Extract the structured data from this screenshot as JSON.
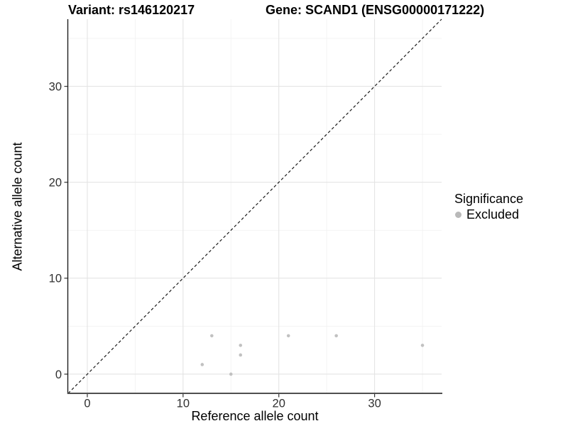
{
  "chart_data": {
    "type": "scatter",
    "titles": {
      "left": "Variant: rs146120217",
      "right": "Gene: SCAND1 (ENSG00000171222)"
    },
    "xlabel": "Reference allele count",
    "ylabel": "Alternative allele count",
    "axis": {
      "xlim": [
        -2,
        37
      ],
      "ylim": [
        -2,
        37
      ],
      "x_major_ticks": [
        0,
        10,
        20,
        30
      ],
      "y_major_ticks": [
        0,
        10,
        20,
        30
      ],
      "x_minor_gridlines": [
        5,
        15,
        25,
        35
      ],
      "y_minor_gridlines": [
        5,
        15,
        25,
        35
      ],
      "grid": "major and minor gridlines on white panel"
    },
    "reference_line": {
      "equation": "y = x",
      "style": "dashed",
      "from": [
        -2,
        -2
      ],
      "to": [
        37,
        37
      ],
      "color": "#1a1a1a"
    },
    "series": [
      {
        "name": "Excluded",
        "marker": "circle",
        "color": "#c1c1c1",
        "points": [
          [
            12,
            1
          ],
          [
            13,
            4
          ],
          [
            15,
            0
          ],
          [
            16,
            2
          ],
          [
            16,
            3
          ],
          [
            21,
            4
          ],
          [
            26,
            4
          ],
          [
            35,
            3
          ]
        ]
      }
    ],
    "legend": {
      "title": "Significance",
      "position": "right-middle",
      "items": [
        {
          "label": "Excluded",
          "marker": "circle",
          "color": "#b9b9b9"
        }
      ]
    }
  },
  "colors": {
    "background": "#ffffff",
    "grid_major": "#e4e4e4",
    "grid_minor": "#f2f2f2",
    "y_axis_line": "#1f1f1f",
    "x_axis_line": "#4f4f4f",
    "tick": "#333333",
    "tick_label": "#303030",
    "point": "#c1c1c1",
    "dashed_line": "#1a1a1a"
  }
}
